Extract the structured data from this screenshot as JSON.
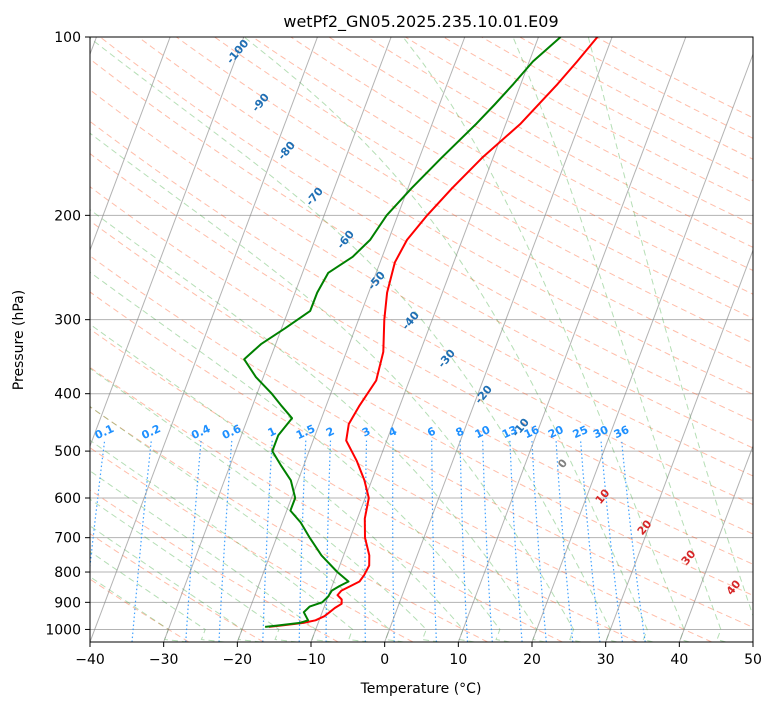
{
  "chart_data": {
    "type": "line",
    "title": "wetPf2_GN05.2025.235.10.01.E09",
    "xlabel": "Temperature (°C)",
    "ylabel": "Pressure (hPa)",
    "xlim": [
      -40,
      50
    ],
    "ylim": [
      1050,
      100
    ],
    "y_scale": "log",
    "x_ticks": [
      -40,
      -30,
      -20,
      -10,
      0,
      10,
      20,
      30,
      40,
      50
    ],
    "y_ticks": [
      100,
      200,
      300,
      400,
      500,
      600,
      700,
      800,
      900,
      1000
    ],
    "grid": true,
    "series": [
      {
        "role": "temperature",
        "color": "#ff0000",
        "points": [
          [
            990,
            -16.5
          ],
          [
            985,
            -15.0
          ],
          [
            975,
            -12.0
          ],
          [
            965,
            -10.5
          ],
          [
            950,
            -9.5
          ],
          [
            935,
            -9.0
          ],
          [
            920,
            -8.5
          ],
          [
            905,
            -7.8
          ],
          [
            890,
            -8.0
          ],
          [
            875,
            -8.8
          ],
          [
            860,
            -8.5
          ],
          [
            845,
            -7.5
          ],
          [
            830,
            -6.5
          ],
          [
            810,
            -6.2
          ],
          [
            780,
            -6.0
          ],
          [
            750,
            -6.5
          ],
          [
            700,
            -8.0
          ],
          [
            650,
            -9.0
          ],
          [
            600,
            -9.5
          ],
          [
            560,
            -11.0
          ],
          [
            520,
            -13.0
          ],
          [
            480,
            -15.5
          ],
          [
            450,
            -16.0
          ],
          [
            420,
            -15.5
          ],
          [
            380,
            -14.5
          ],
          [
            340,
            -15.0
          ],
          [
            300,
            -16.5
          ],
          [
            270,
            -17.5
          ],
          [
            240,
            -18.0
          ],
          [
            220,
            -17.5
          ],
          [
            200,
            -16.0
          ],
          [
            180,
            -14.0
          ],
          [
            160,
            -11.5
          ],
          [
            140,
            -8.0
          ],
          [
            120,
            -5.0
          ],
          [
            110,
            -3.5
          ],
          [
            100,
            -2.0
          ]
        ]
      },
      {
        "role": "dewpoint",
        "color": "#008000",
        "points": [
          [
            990,
            -17.0
          ],
          [
            985,
            -15.5
          ],
          [
            975,
            -12.5
          ],
          [
            965,
            -11.5
          ],
          [
            950,
            -12.0
          ],
          [
            935,
            -12.5
          ],
          [
            915,
            -12.0
          ],
          [
            900,
            -10.5
          ],
          [
            880,
            -10.0
          ],
          [
            860,
            -9.8
          ],
          [
            845,
            -9.0
          ],
          [
            830,
            -8.0
          ],
          [
            800,
            -10.0
          ],
          [
            750,
            -13.0
          ],
          [
            700,
            -15.5
          ],
          [
            660,
            -17.5
          ],
          [
            630,
            -19.5
          ],
          [
            600,
            -19.5
          ],
          [
            560,
            -21.0
          ],
          [
            530,
            -23.0
          ],
          [
            500,
            -25.0
          ],
          [
            470,
            -25.0
          ],
          [
            440,
            -24.0
          ],
          [
            420,
            -26.0
          ],
          [
            400,
            -28.0
          ],
          [
            375,
            -31.0
          ],
          [
            350,
            -33.5
          ],
          [
            330,
            -32.0
          ],
          [
            310,
            -29.5
          ],
          [
            290,
            -27.0
          ],
          [
            270,
            -27.0
          ],
          [
            250,
            -26.5
          ],
          [
            235,
            -24.0
          ],
          [
            220,
            -22.5
          ],
          [
            200,
            -21.5
          ],
          [
            180,
            -19.5
          ],
          [
            160,
            -17.0
          ],
          [
            140,
            -14.0
          ],
          [
            130,
            -12.5
          ],
          [
            120,
            -11.0
          ],
          [
            110,
            -9.5
          ],
          [
            100,
            -7.0
          ]
        ]
      }
    ],
    "dry_adiabat_labels": [
      "-100",
      "-90",
      "-80",
      "-70",
      "-60",
      "-50",
      "-40",
      "-30",
      "-20",
      "-10"
    ],
    "mixing_ratio_labels": [
      "0.1",
      "0.2",
      "0.4",
      "0.6",
      "1",
      "1.5",
      "2",
      "3",
      "4",
      "6",
      "8",
      "10",
      "13",
      "16",
      "20",
      "25",
      "30",
      "36"
    ],
    "moist_adiabat_labels": [
      "0",
      "10",
      "20",
      "30",
      "40"
    ],
    "colors": {
      "dry_adiabat": "#ff5a28",
      "moist_adiabat": "#2ca02c",
      "mixing_ratio": "#1e90ff",
      "isotherm": "#808080",
      "dry_label": "#1f6fb4",
      "moist_label": "#d62728",
      "mixing_label": "#1e90ff"
    }
  }
}
